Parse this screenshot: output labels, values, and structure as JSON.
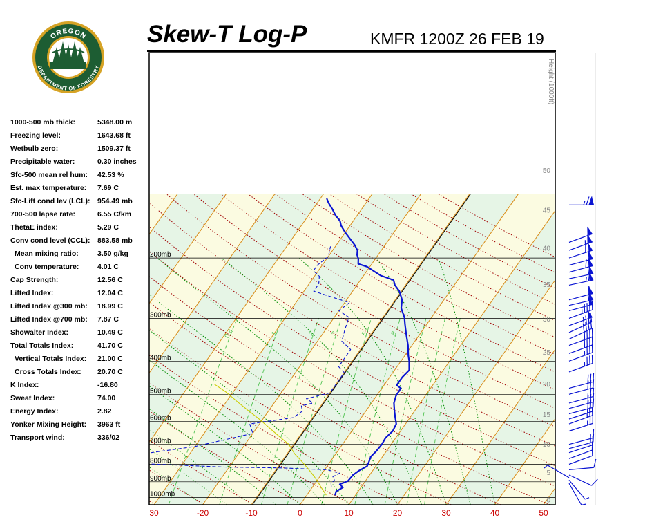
{
  "logo": {
    "top_text": "OREGON",
    "bottom_text": "DEPARTMENT OF FORESTRY",
    "icon": "oregon-forestry-seal-icon"
  },
  "title": "Skew-T Log-P",
  "station": "KMFR 1200Z 26 FEB 19",
  "indices": [
    {
      "label": "1000-500 mb thick:",
      "value": "5348.00 m"
    },
    {
      "label": "Freezing level:",
      "value": "1643.68 ft"
    },
    {
      "label": "Wetbulb zero:",
      "value": "1509.37 ft"
    },
    {
      "label": "Precipitable water:",
      "value": "0.30 inches"
    },
    {
      "label": "Sfc-500 mean rel hum:",
      "value": "42.53 %"
    },
    {
      "label": "Est. max temperature:",
      "value": "7.69 C"
    },
    {
      "label": "Sfc-Lift cond lev (LCL):",
      "value": "954.49 mb"
    },
    {
      "label": "700-500 lapse rate:",
      "value": "6.55 C/km"
    },
    {
      "label": "ThetaE index:",
      "value": "5.29 C"
    },
    {
      "label": "Conv cond level (CCL):",
      "value": "883.58 mb"
    },
    {
      "label": "Mean mixing ratio:",
      "value": "3.50 g/kg",
      "sub": true
    },
    {
      "label": "Conv temperature:",
      "value": "4.01 C",
      "sub": true
    },
    {
      "label": "Cap Strength:",
      "value": "12.56 C"
    },
    {
      "label": "Lifted Index:",
      "value": "12.04 C"
    },
    {
      "label": "Lifted Index @300 mb:",
      "value": "18.99 C"
    },
    {
      "label": "Lifted Index @700 mb:",
      "value": "7.87 C"
    },
    {
      "label": "Showalter Index:",
      "value": "10.49 C"
    },
    {
      "label": "Total Totals Index:",
      "value": "41.70 C"
    },
    {
      "label": "Vertical Totals Index:",
      "value": "21.00 C",
      "sub": true
    },
    {
      "label": "Cross Totals Index:",
      "value": "20.70 C",
      "sub": true
    },
    {
      "label": "K Index:",
      "value": "-16.80"
    },
    {
      "label": "Sweat Index:",
      "value": "74.00"
    },
    {
      "label": "Energy Index:",
      "value": "2.82"
    },
    {
      "label": "Yonker Mixing Height:",
      "value": "3963 ft"
    },
    {
      "label": "Transport wind:",
      "value": "336/02"
    }
  ],
  "chart_data": {
    "type": "line",
    "subtype": "skew-t log-p",
    "x_unit": "C",
    "y_unit": "mb",
    "x_ticks": [
      "30",
      "-20",
      "-10",
      "0",
      "10",
      "20",
      "30",
      "40",
      "50"
    ],
    "xlim": [
      -30,
      50
    ],
    "ylim": [
      1050,
      130
    ],
    "y_scale": "log",
    "isobars": [
      {
        "p": 200,
        "label": "200mb"
      },
      {
        "p": 300,
        "label": "300mb"
      },
      {
        "p": 400,
        "label": "400mb"
      },
      {
        "p": 500,
        "label": "500mb"
      },
      {
        "p": 600,
        "label": "600mb"
      },
      {
        "p": 700,
        "label": "700mb"
      },
      {
        "p": 800,
        "label": "800mb"
      },
      {
        "p": 900,
        "label": "900mb"
      },
      {
        "p": 1000,
        "label": "1000mb"
      }
    ],
    "height_axis": {
      "label": "Height (1000ft)",
      "ticks": [
        "0",
        "5",
        "10",
        "15",
        "20",
        "25",
        "30",
        "35",
        "40",
        "45",
        "50"
      ]
    },
    "mixing_ratio_labels": [
      "0.4",
      "1",
      "2",
      "3",
      "5",
      "8"
    ],
    "series": [
      {
        "role": "temperature",
        "color": "#0a14d2",
        "points": [
          [
            5.8,
            985
          ],
          [
            5.5,
            960
          ],
          [
            6.3,
            935
          ],
          [
            5.2,
            915
          ],
          [
            6.4,
            895
          ],
          [
            6.6,
            860
          ],
          [
            7.2,
            835
          ],
          [
            8.2,
            810
          ],
          [
            8.0,
            790
          ],
          [
            7.6,
            760
          ],
          [
            7.9,
            735
          ],
          [
            8.1,
            700
          ],
          [
            7.9,
            670
          ],
          [
            8.4,
            640
          ],
          [
            8.1,
            610
          ],
          [
            7.0,
            585
          ],
          [
            5.9,
            560
          ],
          [
            4.6,
            530
          ],
          [
            4.0,
            505
          ],
          [
            3.9,
            480
          ],
          [
            2.6,
            470
          ],
          [
            2.6,
            445
          ],
          [
            3.0,
            425
          ],
          [
            1.7,
            400
          ],
          [
            0.7,
            385
          ],
          [
            -0.8,
            360
          ],
          [
            -2.7,
            335
          ],
          [
            -4.5,
            312
          ],
          [
            -5.6,
            298
          ],
          [
            -7.6,
            280
          ],
          [
            -8.6,
            265
          ],
          [
            -10.4,
            250
          ],
          [
            -12.2,
            240
          ],
          [
            -13.2,
            232
          ],
          [
            -16.5,
            225
          ],
          [
            -20.6,
            212
          ],
          [
            -22.8,
            208
          ],
          [
            -23.5,
            201
          ],
          [
            -24.3,
            196
          ],
          [
            -24.9,
            190
          ],
          [
            -26.3,
            183
          ],
          [
            -28.3,
            175
          ],
          [
            -30.1,
            168
          ],
          [
            -31.8,
            161
          ],
          [
            -32.7,
            156
          ],
          [
            -34.5,
            150
          ],
          [
            -36.0,
            144
          ],
          [
            -37.7,
            138
          ],
          [
            -38.7,
            134
          ]
        ]
      },
      {
        "role": "dewpoint",
        "color": "#0a14d2",
        "dashed": true,
        "points": [
          [
            3.8,
            930
          ],
          [
            3.3,
            910
          ],
          [
            3.5,
            890
          ],
          [
            2.7,
            870
          ],
          [
            3.6,
            850
          ],
          [
            0.5,
            830
          ],
          [
            -9,
            820
          ],
          [
            -21,
            815
          ],
          [
            -40,
            795
          ],
          [
            -44,
            775
          ],
          [
            -42,
            755
          ],
          [
            -30,
            710
          ],
          [
            -20,
            650
          ],
          [
            -22,
            610
          ],
          [
            -14,
            585
          ],
          [
            -13,
            560
          ],
          [
            -14,
            540
          ],
          [
            -12,
            530
          ],
          [
            -14,
            515
          ],
          [
            -10,
            495
          ],
          [
            -10,
            480
          ],
          [
            -10,
            455
          ],
          [
            -10,
            432
          ],
          [
            -12,
            415
          ],
          [
            -12,
            390
          ],
          [
            -12,
            370
          ],
          [
            -15,
            350
          ],
          [
            -16,
            325
          ],
          [
            -17,
            298
          ],
          [
            -20,
            285
          ],
          [
            -19,
            270
          ],
          [
            -28,
            250
          ],
          [
            -28,
            238
          ],
          [
            -29,
            226
          ],
          [
            -31,
            218
          ],
          [
            -31,
            210
          ],
          [
            -30,
            198
          ],
          [
            -31,
            185
          ]
        ]
      },
      {
        "role": "parcel",
        "color": "#cccc00",
        "points": [
          [
            4.0,
            985
          ],
          [
            2.7,
            955
          ],
          [
            1.0,
            915
          ],
          [
            -1.0,
            872
          ],
          [
            -3.5,
            825
          ],
          [
            -6.0,
            783
          ],
          [
            -8.5,
            745
          ],
          [
            -11.0,
            700
          ],
          [
            -14.0,
            665
          ],
          [
            -17.5,
            625
          ],
          [
            -21.0,
            588
          ],
          [
            -24.5,
            555
          ],
          [
            -28.0,
            523
          ],
          [
            -31.5,
            492
          ],
          [
            -35.0,
            467
          ]
        ]
      }
    ]
  },
  "wind_barbs": [
    {
      "p": 140,
      "dir": 270,
      "spd": 75
    },
    {
      "p": 180,
      "dir": 250,
      "spd": 60
    },
    {
      "p": 190,
      "dir": 250,
      "spd": 65
    },
    {
      "p": 200,
      "dir": 252,
      "spd": 70
    },
    {
      "p": 210,
      "dir": 255,
      "spd": 60
    },
    {
      "p": 220,
      "dir": 255,
      "spd": 70
    },
    {
      "p": 230,
      "dir": 258,
      "spd": 60
    },
    {
      "p": 240,
      "dir": 258,
      "spd": 65
    },
    {
      "p": 265,
      "dir": 255,
      "spd": 60
    },
    {
      "p": 275,
      "dir": 257,
      "spd": 60
    },
    {
      "p": 285,
      "dir": 255,
      "spd": 50
    },
    {
      "p": 300,
      "dir": 250,
      "spd": 45
    },
    {
      "p": 315,
      "dir": 250,
      "spd": 50
    },
    {
      "p": 330,
      "dir": 245,
      "spd": 40
    },
    {
      "p": 345,
      "dir": 245,
      "spd": 40
    },
    {
      "p": 360,
      "dir": 250,
      "spd": 40
    },
    {
      "p": 380,
      "dir": 250,
      "spd": 40
    },
    {
      "p": 400,
      "dir": 250,
      "spd": 35
    },
    {
      "p": 430,
      "dir": 250,
      "spd": 35
    },
    {
      "p": 480,
      "dir": 255,
      "spd": 30
    },
    {
      "p": 500,
      "dir": 255,
      "spd": 30
    },
    {
      "p": 530,
      "dir": 255,
      "spd": 25
    },
    {
      "p": 550,
      "dir": 255,
      "spd": 30
    },
    {
      "p": 570,
      "dir": 255,
      "spd": 30
    },
    {
      "p": 590,
      "dir": 252,
      "spd": 25
    },
    {
      "p": 610,
      "dir": 250,
      "spd": 25
    },
    {
      "p": 640,
      "dir": 252,
      "spd": 25
    },
    {
      "p": 700,
      "dir": 255,
      "spd": 15
    },
    {
      "p": 720,
      "dir": 255,
      "spd": 15
    },
    {
      "p": 740,
      "dir": 252,
      "spd": 15
    },
    {
      "p": 770,
      "dir": 250,
      "spd": 10
    },
    {
      "p": 800,
      "dir": 250,
      "spd": 10
    },
    {
      "p": 830,
      "dir": 265,
      "spd": 10
    },
    {
      "p": 860,
      "dir": 295,
      "spd": 10
    },
    {
      "p": 875,
      "dir": 120,
      "spd": 5
    },
    {
      "p": 890,
      "dir": 320,
      "spd": 5
    },
    {
      "p": 910,
      "dir": 330,
      "spd": 5
    }
  ],
  "colors": {
    "band_green": "#e6f5e6",
    "band_yellow": "#fbfbe1",
    "isotherm": "#d98b16",
    "dry_adiabat": "#a00000",
    "moist_adiabat": "#008c00",
    "mixing_ratio": "#5cc75c",
    "trace": "#0a14d2",
    "parcel": "#cccc00",
    "x_tick": "#cc0000",
    "logo_green": "#1d5d33",
    "logo_gold": "#d6a325"
  }
}
